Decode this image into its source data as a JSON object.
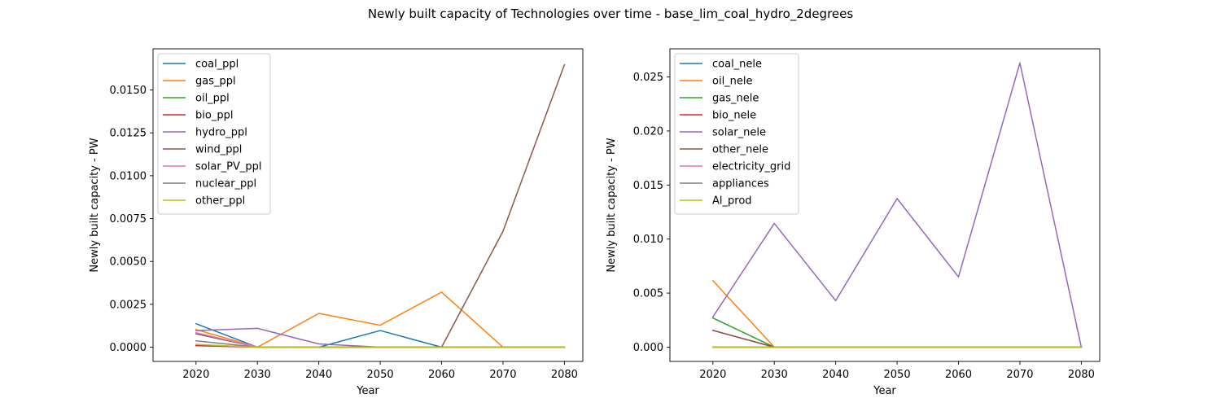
{
  "figure": {
    "title": "Newly built capacity of Technologies over time - base_lim_coal_hydro_2degrees"
  },
  "chart_data": [
    {
      "type": "line",
      "xlabel": "Year",
      "ylabel": "Newly built capacity - PW",
      "x": [
        2020,
        2030,
        2040,
        2050,
        2060,
        2070,
        2080
      ],
      "xticks": [
        "2020",
        "2030",
        "2040",
        "2050",
        "2060",
        "2070",
        "2080"
      ],
      "xlim": [
        2013,
        2083
      ],
      "ylim": [
        -0.00083,
        0.0174
      ],
      "yticks": [
        "0.0000",
        "0.0025",
        "0.0050",
        "0.0075",
        "0.0100",
        "0.0125",
        "0.0150"
      ],
      "ytick_values": [
        0,
        0.0025,
        0.005,
        0.0075,
        0.01,
        0.0125,
        0.015
      ],
      "grid": false,
      "legend_position": "top-left",
      "series": [
        {
          "name": "coal_ppl",
          "color": "#1f77b4",
          "values": [
            0.00137,
            0,
            0,
            0.00097,
            0,
            0,
            0
          ]
        },
        {
          "name": "gas_ppl",
          "color": "#ff7f0e",
          "values": [
            0.00103,
            0,
            0.00197,
            0.00128,
            0.00321,
            0,
            0
          ]
        },
        {
          "name": "oil_ppl",
          "color": "#2ca02c",
          "values": [
            0.00013,
            0,
            0,
            0,
            0,
            0,
            0
          ]
        },
        {
          "name": "bio_ppl",
          "color": "#d62728",
          "values": [
            9e-05,
            0,
            0,
            0,
            0,
            0,
            0
          ]
        },
        {
          "name": "hydro_ppl",
          "color": "#9467bd",
          "values": [
            0.00097,
            0.0011,
            0.00019,
            0,
            0,
            0,
            0
          ]
        },
        {
          "name": "wind_ppl",
          "color": "#8c564b",
          "values": [
            0.00078,
            0,
            0,
            0,
            0,
            0.00676,
            0.01647
          ]
        },
        {
          "name": "solar_PV_ppl",
          "color": "#e377c2",
          "values": [
            0.00085,
            0,
            0,
            0,
            0,
            0,
            0
          ]
        },
        {
          "name": "nuclear_ppl",
          "color": "#7f7f7f",
          "values": [
            0.00037,
            0,
            0,
            0,
            0,
            0,
            0
          ]
        },
        {
          "name": "other_ppl",
          "color": "#bcbd22",
          "values": [
            0.00016,
            0,
            0,
            0,
            0,
            0,
            0
          ]
        }
      ]
    },
    {
      "type": "line",
      "xlabel": "Year",
      "ylabel": "Newly built capacity - PW",
      "x": [
        2020,
        2030,
        2040,
        2050,
        2060,
        2070,
        2080
      ],
      "xticks": [
        "2020",
        "2030",
        "2040",
        "2050",
        "2060",
        "2070",
        "2080"
      ],
      "xlim": [
        2013,
        2083
      ],
      "ylim": [
        -0.00132,
        0.0276
      ],
      "yticks": [
        "0.000",
        "0.005",
        "0.010",
        "0.015",
        "0.020",
        "0.025"
      ],
      "ytick_values": [
        0,
        0.005,
        0.01,
        0.015,
        0.02,
        0.025
      ],
      "grid": false,
      "legend_position": "top-left",
      "series": [
        {
          "name": "coal_nele",
          "color": "#1f77b4",
          "values": [
            0,
            0,
            0,
            0,
            0,
            0,
            0
          ]
        },
        {
          "name": "oil_nele",
          "color": "#ff7f0e",
          "values": [
            0.00615,
            0,
            0,
            0,
            0,
            0,
            0
          ]
        },
        {
          "name": "gas_nele",
          "color": "#2ca02c",
          "values": [
            0.0027,
            0,
            0,
            0,
            0,
            0,
            0
          ]
        },
        {
          "name": "bio_nele",
          "color": "#d62728",
          "values": [
            0.00155,
            0,
            0,
            0,
            0,
            0,
            0
          ]
        },
        {
          "name": "solar_nele",
          "color": "#9467bd",
          "values": [
            0.0028,
            0.01145,
            0.0043,
            0.01375,
            0.0065,
            0.0263,
            0
          ]
        },
        {
          "name": "other_nele",
          "color": "#8c564b",
          "values": [
            0.00155,
            0,
            0,
            0,
            0,
            0,
            0
          ]
        },
        {
          "name": "electricity_grid",
          "color": "#e377c2",
          "values": [
            0,
            0,
            0,
            0,
            0,
            0,
            0
          ]
        },
        {
          "name": "appliances",
          "color": "#7f7f7f",
          "values": [
            0,
            0,
            0,
            0,
            0,
            0,
            0
          ]
        },
        {
          "name": "Al_prod",
          "color": "#bcbd22",
          "values": [
            0,
            0,
            0,
            0,
            0,
            0,
            0
          ]
        }
      ]
    }
  ]
}
